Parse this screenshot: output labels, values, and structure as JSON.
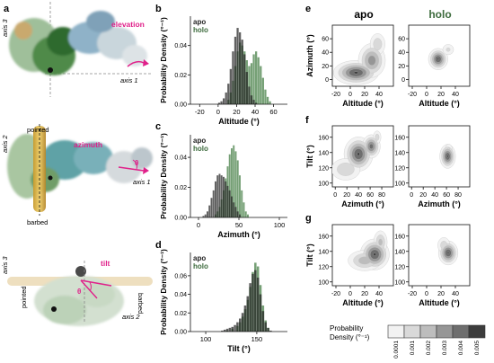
{
  "panel_letters": {
    "a": "a",
    "b": "b",
    "c": "c",
    "d": "d",
    "e": "e",
    "f": "f",
    "g": "g"
  },
  "panel_a": {
    "top": {
      "axis_left": "axis 3",
      "axis_right": "axis 1",
      "motion": "elevation"
    },
    "mid": {
      "axis_left": "axis 2",
      "axis_right": "axis 1",
      "motion": "azimuth",
      "end_top": "pointed",
      "end_bottom": "barbed",
      "theta": "θ"
    },
    "bot": {
      "axis_top": "axis 3",
      "axis_right": "axis 2",
      "motion": "tilt",
      "end_left": "pointed",
      "end_right": "barbed",
      "theta": "θ"
    }
  },
  "colors": {
    "apo": "#222222",
    "holo": "#3d6b3d",
    "holo_fill": "#5e8f5e",
    "overlap": "#3a3a3a",
    "accent": "#e0218a",
    "axis_dash": "#777777"
  },
  "hist_legend": {
    "apo": "apo",
    "holo": "holo"
  },
  "ylabel_hist": "Probability Density",
  "ylabel_unit": "(°⁻¹)",
  "chart_data": [
    {
      "type": "histogram",
      "panel": "b",
      "xlabel": "Altitude (°)",
      "ylabel": "Probability Density (°⁻¹)",
      "xlim": [
        -30,
        75
      ],
      "ylim": [
        0,
        0.06
      ],
      "xticks": [
        -20,
        0,
        20,
        40,
        60
      ],
      "yticks": [
        0.0,
        0.02,
        0.04
      ],
      "ytick_labels": [
        "0.00",
        "0.02",
        "0.04"
      ],
      "bin_width": 2.5,
      "series": [
        {
          "name": "apo",
          "bins": [
            [
              0,
              0.001
            ],
            [
              2.5,
              0.002
            ],
            [
              5,
              0.004
            ],
            [
              7.5,
              0.008
            ],
            [
              10,
              0.014
            ],
            [
              12.5,
              0.024
            ],
            [
              15,
              0.036
            ],
            [
              17.5,
              0.046
            ],
            [
              20,
              0.052
            ],
            [
              22.5,
              0.049
            ],
            [
              25,
              0.044
            ],
            [
              27.5,
              0.034
            ],
            [
              30,
              0.022
            ],
            [
              32.5,
              0.012
            ],
            [
              35,
              0.006
            ],
            [
              37.5,
              0.003
            ],
            [
              40,
              0.001
            ]
          ]
        },
        {
          "name": "holo",
          "bins": [
            [
              10,
              0.003
            ],
            [
              12.5,
              0.008
            ],
            [
              15,
              0.016
            ],
            [
              17.5,
              0.026
            ],
            [
              20,
              0.036
            ],
            [
              22.5,
              0.042
            ],
            [
              25,
              0.04
            ],
            [
              27.5,
              0.036
            ],
            [
              30,
              0.03
            ],
            [
              32.5,
              0.026
            ],
            [
              35,
              0.028
            ],
            [
              37.5,
              0.034
            ],
            [
              40,
              0.036
            ],
            [
              42.5,
              0.032
            ],
            [
              45,
              0.026
            ],
            [
              47.5,
              0.018
            ],
            [
              50,
              0.01
            ],
            [
              52.5,
              0.005
            ],
            [
              55,
              0.002
            ]
          ]
        }
      ]
    },
    {
      "type": "histogram",
      "panel": "c",
      "xlabel": "Azimuth (°)",
      "ylabel": "Probability Density (°⁻¹)",
      "xlim": [
        -10,
        110
      ],
      "ylim": [
        0,
        0.055
      ],
      "xticks": [
        0,
        50,
        100
      ],
      "yticks": [
        0.0,
        0.02,
        0.04
      ],
      "ytick_labels": [
        "0.00",
        "0.02",
        "0.04"
      ],
      "bin_width": 2.5,
      "series": [
        {
          "name": "apo",
          "bins": [
            [
              5,
              0.001
            ],
            [
              7.5,
              0.002
            ],
            [
              10,
              0.004
            ],
            [
              12.5,
              0.008
            ],
            [
              15,
              0.013
            ],
            [
              17.5,
              0.018
            ],
            [
              20,
              0.024
            ],
            [
              22.5,
              0.028
            ],
            [
              25,
              0.029
            ],
            [
              27.5,
              0.028
            ],
            [
              30,
              0.027
            ],
            [
              32.5,
              0.024
            ],
            [
              35,
              0.021
            ],
            [
              37.5,
              0.018
            ],
            [
              40,
              0.014
            ],
            [
              42.5,
              0.01
            ],
            [
              45,
              0.007
            ],
            [
              47.5,
              0.004
            ],
            [
              50,
              0.002
            ]
          ]
        },
        {
          "name": "holo",
          "bins": [
            [
              20,
              0.002
            ],
            [
              22.5,
              0.004
            ],
            [
              25,
              0.007
            ],
            [
              27.5,
              0.012
            ],
            [
              30,
              0.018
            ],
            [
              32.5,
              0.026
            ],
            [
              35,
              0.034
            ],
            [
              37.5,
              0.042
            ],
            [
              40,
              0.046
            ],
            [
              42.5,
              0.048
            ],
            [
              45,
              0.044
            ],
            [
              47.5,
              0.038
            ],
            [
              50,
              0.028
            ],
            [
              52.5,
              0.018
            ],
            [
              55,
              0.01
            ],
            [
              57.5,
              0.004
            ],
            [
              60,
              0.002
            ]
          ]
        }
      ]
    },
    {
      "type": "histogram",
      "panel": "d",
      "xlabel": "Tilt (°)",
      "ylabel": "Probability Density (°⁻¹)",
      "xlim": [
        85,
        180
      ],
      "ylim": [
        0,
        0.085
      ],
      "xticks": [
        100,
        150
      ],
      "yticks": [
        0.0,
        0.02,
        0.04,
        0.06
      ],
      "ytick_labels": [
        "0.00",
        "0.02",
        "0.04",
        "0.06"
      ],
      "bin_width": 2.5,
      "series": [
        {
          "name": "apo",
          "bins": [
            [
              115,
              0.001
            ],
            [
              117.5,
              0.002
            ],
            [
              120,
              0.003
            ],
            [
              122.5,
              0.004
            ],
            [
              125,
              0.005
            ],
            [
              127.5,
              0.007
            ],
            [
              130,
              0.01
            ],
            [
              132.5,
              0.014
            ],
            [
              135,
              0.02
            ],
            [
              137.5,
              0.028
            ],
            [
              140,
              0.038
            ],
            [
              142.5,
              0.052
            ],
            [
              145,
              0.062
            ],
            [
              147.5,
              0.066
            ],
            [
              150,
              0.058
            ],
            [
              152.5,
              0.04
            ],
            [
              155,
              0.022
            ],
            [
              157.5,
              0.01
            ],
            [
              160,
              0.004
            ],
            [
              162.5,
              0.001
            ]
          ]
        },
        {
          "name": "holo",
          "bins": [
            [
              120,
              0.001
            ],
            [
              125,
              0.003
            ],
            [
              130,
              0.006
            ],
            [
              132.5,
              0.01
            ],
            [
              135,
              0.016
            ],
            [
              137.5,
              0.024
            ],
            [
              140,
              0.034
            ],
            [
              142.5,
              0.048
            ],
            [
              145,
              0.064
            ],
            [
              147.5,
              0.074
            ],
            [
              150,
              0.07
            ],
            [
              152.5,
              0.05
            ],
            [
              155,
              0.028
            ],
            [
              157.5,
              0.012
            ],
            [
              160,
              0.004
            ]
          ]
        }
      ]
    },
    {
      "type": "contour",
      "panel": "e",
      "state": "apo",
      "xlabel": "Altitude (°)",
      "ylabel": "Azimuth (°)",
      "xlim": [
        -25,
        60
      ],
      "ylim": [
        -10,
        80
      ],
      "xticks": [
        -20,
        0,
        20,
        40
      ],
      "yticks": [
        0,
        20,
        40,
        60
      ],
      "blobs": [
        {
          "x": 8,
          "y": 10,
          "sx": 14,
          "sy": 8,
          "w": 1.0
        },
        {
          "x": 30,
          "y": 28,
          "sx": 9,
          "sy": 12,
          "w": 0.7
        },
        {
          "x": 38,
          "y": 52,
          "sx": 6,
          "sy": 9,
          "w": 0.35
        }
      ]
    },
    {
      "type": "contour",
      "panel": "e",
      "state": "holo",
      "xlabel": "Altitude (°)",
      "ylabel": "",
      "xlim": [
        -25,
        60
      ],
      "ylim": [
        -10,
        80
      ],
      "xticks": [
        -20,
        0,
        20,
        40
      ],
      "yticks": [
        0,
        20,
        40,
        60
      ],
      "blobs": [
        {
          "x": 16,
          "y": 30,
          "sx": 6,
          "sy": 7,
          "w": 1.6
        },
        {
          "x": 30,
          "y": 44,
          "sx": 5,
          "sy": 5,
          "w": 0.4
        }
      ]
    },
    {
      "type": "contour",
      "panel": "f",
      "state": "apo",
      "xlabel": "Azimuth (°)",
      "ylabel": "Tilt (°)",
      "xlim": [
        -5,
        100
      ],
      "ylim": [
        95,
        175
      ],
      "xticks": [
        0,
        20,
        40,
        60,
        80
      ],
      "yticks": [
        100,
        120,
        140,
        160
      ],
      "blobs": [
        {
          "x": 40,
          "y": 138,
          "sx": 11,
          "sy": 10,
          "w": 0.8
        },
        {
          "x": 62,
          "y": 148,
          "sx": 7,
          "sy": 7,
          "w": 0.7
        },
        {
          "x": 18,
          "y": 118,
          "sx": 14,
          "sy": 8,
          "w": 0.3
        },
        {
          "x": 72,
          "y": 160,
          "sx": 4,
          "sy": 5,
          "w": 0.25
        }
      ]
    },
    {
      "type": "contour",
      "panel": "f",
      "state": "holo",
      "xlabel": "Azimuth (°)",
      "ylabel": "",
      "xlim": [
        -5,
        100
      ],
      "ylim": [
        95,
        175
      ],
      "xticks": [
        0,
        20,
        40,
        60,
        80
      ],
      "yticks": [
        100,
        120,
        140,
        160
      ],
      "blobs": [
        {
          "x": 62,
          "y": 135,
          "sx": 6,
          "sy": 7,
          "w": 1.3
        },
        {
          "x": 64,
          "y": 145,
          "sx": 4,
          "sy": 4,
          "w": 0.3
        }
      ]
    },
    {
      "type": "contour",
      "panel": "g",
      "state": "apo",
      "xlabel": "Altitude (°)",
      "ylabel": "Tilt (°)",
      "xlim": [
        -25,
        60
      ],
      "ylim": [
        95,
        175
      ],
      "xticks": [
        -20,
        0,
        20,
        40
      ],
      "yticks": [
        100,
        120,
        140,
        160
      ],
      "blobs": [
        {
          "x": 34,
          "y": 136,
          "sx": 9,
          "sy": 9,
          "w": 1.0
        },
        {
          "x": 20,
          "y": 128,
          "sx": 12,
          "sy": 7,
          "w": 0.5
        },
        {
          "x": 42,
          "y": 152,
          "sx": 5,
          "sy": 8,
          "w": 0.45
        }
      ]
    },
    {
      "type": "contour",
      "panel": "g",
      "state": "holo",
      "xlabel": "Altitude (°)",
      "ylabel": "",
      "xlim": [
        -25,
        60
      ],
      "ylim": [
        95,
        175
      ],
      "xticks": [
        -20,
        0,
        20,
        40
      ],
      "yticks": [
        100,
        120,
        140,
        160
      ],
      "blobs": [
        {
          "x": 30,
          "y": 138,
          "sx": 6,
          "sy": 7,
          "w": 1.5
        },
        {
          "x": 24,
          "y": 148,
          "sx": 5,
          "sy": 6,
          "w": 0.5
        }
      ]
    }
  ],
  "col_titles": {
    "apo": "apo",
    "holo": "holo"
  },
  "colorbar": {
    "label_line1": "Probability",
    "label_line2": "Density (°⁻¹)",
    "ticks": [
      "0.0001",
      "0.001",
      "0.002",
      "0.003",
      "0.004",
      "0.005"
    ],
    "levels": [
      0.0001,
      0.001,
      0.002,
      0.003,
      0.004,
      0.005
    ],
    "shades": [
      "#f2f2f2",
      "#d9d9d9",
      "#bdbdbd",
      "#969696",
      "#6e6e6e",
      "#3c3c3c"
    ]
  }
}
